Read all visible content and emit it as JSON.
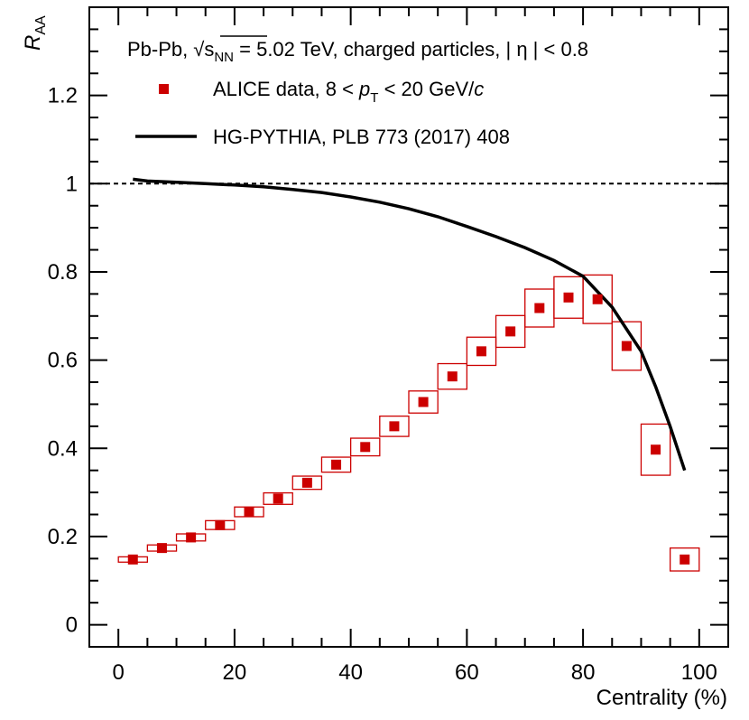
{
  "chart_data": {
    "type": "scatter",
    "header": {
      "system": "Pb-Pb,",
      "energy_symbol": "s",
      "energy_sub": "NN",
      "energy_value": " = 5.02 TeV, charged particles, | η | < 0.8"
    },
    "xlabel": "Centrality (%)",
    "ylabel": "R",
    "ylabel_sub": "AA",
    "xlim": [
      -5,
      105
    ],
    "ylim": [
      -0.05,
      1.4
    ],
    "x_ticks": [
      0,
      20,
      40,
      60,
      80,
      100
    ],
    "y_ticks": [
      0,
      0.2,
      0.4,
      0.6,
      0.8,
      1,
      1.2
    ],
    "x_tick_labels": [
      "0",
      "20",
      "40",
      "60",
      "80",
      "100"
    ],
    "y_tick_labels": [
      "0",
      "0.2",
      "0.4",
      "0.6",
      "0.8",
      "1",
      "1.2"
    ],
    "reference_line": 1.0,
    "legend": {
      "data_label_prefix": "ALICE data, 8 < ",
      "data_label_var": "p",
      "data_label_sub": "T",
      "data_label_suffix": " < 20 GeV/",
      "data_label_unit": "c",
      "model_label": "HG-PYTHIA, PLB 773 (2017) 408"
    },
    "colors": {
      "data": "#cc0000",
      "model": "#000000"
    },
    "series": [
      {
        "name": "ALICE data, 8 < pT < 20 GeV/c",
        "kind": "points",
        "x": [
          2.5,
          7.5,
          12.5,
          17.5,
          22.5,
          27.5,
          32.5,
          37.5,
          42.5,
          47.5,
          52.5,
          57.5,
          62.5,
          67.5,
          72.5,
          77.5,
          82.5,
          87.5,
          92.5,
          97.5
        ],
        "y": [
          0.148,
          0.174,
          0.198,
          0.226,
          0.256,
          0.286,
          0.322,
          0.363,
          0.403,
          0.45,
          0.505,
          0.563,
          0.62,
          0.665,
          0.718,
          0.742,
          0.738,
          0.632,
          0.397,
          0.148
        ],
        "sys_err": [
          0.006,
          0.007,
          0.008,
          0.01,
          0.011,
          0.013,
          0.015,
          0.017,
          0.02,
          0.023,
          0.025,
          0.029,
          0.032,
          0.036,
          0.043,
          0.047,
          0.055,
          0.055,
          0.058,
          0.026
        ]
      },
      {
        "name": "HG-PYTHIA, PLB 773 (2017) 408",
        "kind": "line",
        "x": [
          2.5,
          5,
          10,
          15,
          20,
          25,
          30,
          35,
          40,
          45,
          50,
          55,
          60,
          65,
          70,
          75,
          80,
          85,
          90,
          92.5,
          95,
          97.5
        ],
        "y": [
          1.01,
          1.006,
          1.003,
          1.0,
          0.997,
          0.993,
          0.987,
          0.98,
          0.97,
          0.958,
          0.943,
          0.925,
          0.903,
          0.88,
          0.855,
          0.826,
          0.79,
          0.72,
          0.62,
          0.54,
          0.45,
          0.35
        ]
      }
    ]
  }
}
